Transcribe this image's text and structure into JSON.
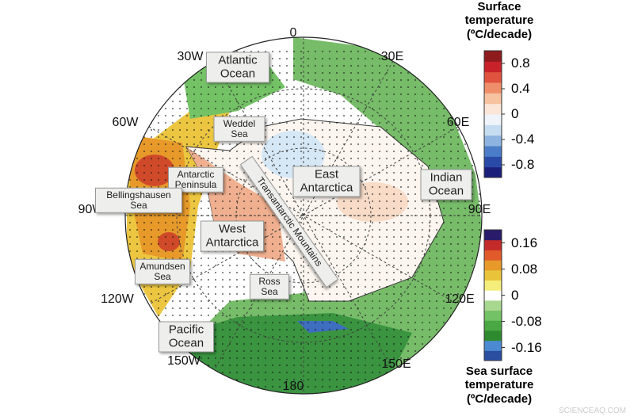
{
  "map": {
    "longitude_labels": [
      "0",
      "30E",
      "60E",
      "90E",
      "120E",
      "150E",
      "180",
      "150W",
      "120W",
      "90W",
      "60W",
      "30W"
    ],
    "regions": [
      "Atlantic Ocean",
      "Weddel Sea",
      "Antarctic Peninsula",
      "Bellingshausen Sea",
      "Amundsen Sea",
      "West Antarctica",
      "Ross Sea",
      "Pacific Ocean",
      "East Antarctica",
      "Indian Ocean",
      "Transantarctic Mountains"
    ],
    "watermark": "SCIENCEAQ.COM"
  },
  "colorbars": [
    {
      "title": "Surface temperature (ºC/decade)",
      "range": [
        -1,
        1
      ],
      "ticks": [
        0.8,
        0.4,
        0,
        -0.4,
        -0.8
      ],
      "colors": [
        "#1b1f7a",
        "#2a4aa8",
        "#4a7cc8",
        "#8db3e0",
        "#c6dcf0",
        "#eef4fa",
        "#fbe6d8",
        "#f6c2a0",
        "#ef8f6a",
        "#e0533f",
        "#c8222a",
        "#8e1b1e"
      ]
    },
    {
      "title": "Sea surface temperature (ºC/decade)",
      "range": [
        -0.2,
        0.2
      ],
      "ticks": [
        0.16,
        0.08,
        0,
        -0.08,
        -0.16
      ],
      "colors": [
        "#2b4ea0",
        "#4b8ad0",
        "#2e8a2e",
        "#49a844",
        "#74c266",
        "#a8d88f",
        "#ffffff",
        "#f4ee7a",
        "#e9c43a",
        "#e79a2a",
        "#e05a2a",
        "#c42a2a",
        "#2a1c6a"
      ]
    }
  ]
}
